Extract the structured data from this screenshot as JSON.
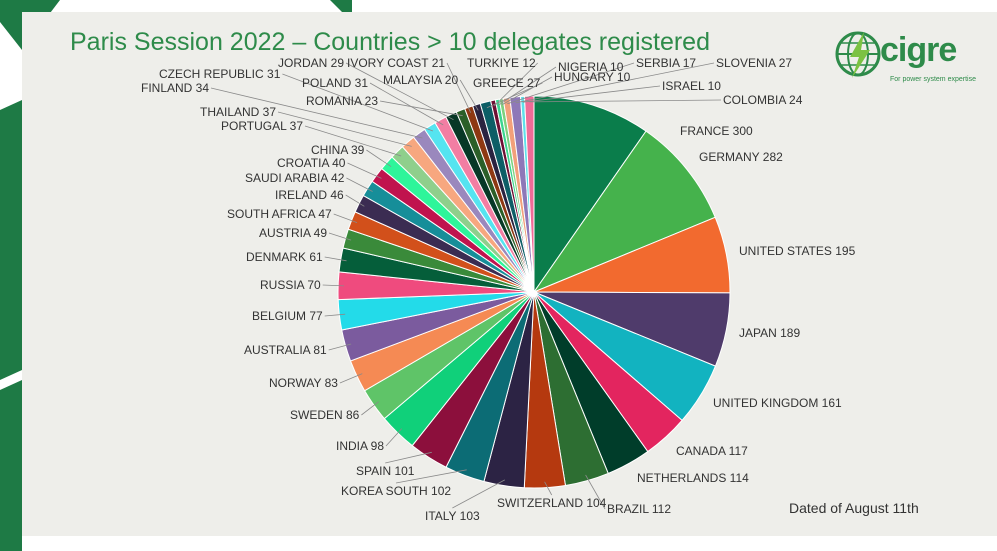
{
  "title": "Paris Session 2022 – Countries > 10 delegates registered",
  "logo": {
    "word": "cigre",
    "tagline": "For power system expertise",
    "icon": "globe-bolt-icon"
  },
  "note": "Dated of August 11th",
  "colors": {
    "brand": "#2e8b4a",
    "panel": "#eeeeea",
    "decor": "#1e7a45"
  },
  "chart_data": {
    "type": "pie",
    "start": "12 o'clock",
    "direction": "clockwise",
    "slices": [
      {
        "label": "FRANCE",
        "value": 300,
        "color": "#0a7d4b"
      },
      {
        "label": "GERMANY",
        "value": 282,
        "color": "#45b24c"
      },
      {
        "label": "UNITED STATES",
        "value": 195,
        "color": "#f26a2f"
      },
      {
        "label": "JAPAN",
        "value": 189,
        "color": "#4f3b6b"
      },
      {
        "label": "UNITED KINGDOM",
        "value": 161,
        "color": "#12b3c0"
      },
      {
        "label": "CANADA",
        "value": 117,
        "color": "#e3255f"
      },
      {
        "label": "NETHERLANDS",
        "value": 114,
        "color": "#003d2a"
      },
      {
        "label": "BRAZIL",
        "value": 112,
        "color": "#2d6e32"
      },
      {
        "label": "SWITZERLAND",
        "value": 104,
        "color": "#b5390f"
      },
      {
        "label": "ITALY",
        "value": 103,
        "color": "#2c2344"
      },
      {
        "label": "KOREA SOUTH",
        "value": 102,
        "color": "#0c6c75"
      },
      {
        "label": "SPAIN",
        "value": 101,
        "color": "#8c0f3c"
      },
      {
        "label": "INDIA",
        "value": 98,
        "color": "#10d07a"
      },
      {
        "label": "SWEDEN",
        "value": 86,
        "color": "#5fc468"
      },
      {
        "label": "NORWAY",
        "value": 83,
        "color": "#f58a54"
      },
      {
        "label": "AUSTRALIA",
        "value": 81,
        "color": "#7b5b9e"
      },
      {
        "label": "BELGIUM",
        "value": 77,
        "color": "#23dbe9"
      },
      {
        "label": "RUSSIA",
        "value": 70,
        "color": "#ef4b7e"
      },
      {
        "label": "DENMARK",
        "value": 61,
        "color": "#055e3a"
      },
      {
        "label": "AUSTRIA",
        "value": 49,
        "color": "#3a8a3a"
      },
      {
        "label": "SOUTH AFRICA",
        "value": 47,
        "color": "#d2501b"
      },
      {
        "label": "IRELAND",
        "value": 46,
        "color": "#3b2c52"
      },
      {
        "label": "SAUDI ARABIA",
        "value": 42,
        "color": "#168e99"
      },
      {
        "label": "CROATIA",
        "value": 40,
        "color": "#c0134e"
      },
      {
        "label": "CHINA",
        "value": 39,
        "color": "#2ef59a"
      },
      {
        "label": "PORTUGAL",
        "value": 37,
        "color": "#8fcf8c"
      },
      {
        "label": "THAILAND",
        "value": 37,
        "color": "#f7a77f"
      },
      {
        "label": "FINLAND",
        "value": 34,
        "color": "#9a88bd"
      },
      {
        "label": "CZECH REPUBLIC",
        "value": 31,
        "color": "#55e4f0"
      },
      {
        "label": "POLAND",
        "value": 31,
        "color": "#f27ea3"
      },
      {
        "label": "JORDAN",
        "value": 29,
        "color": "#073826"
      },
      {
        "label": "ROMANIA",
        "value": 23,
        "color": "#2b5f28"
      },
      {
        "label": "IVORY COAST",
        "value": 21,
        "color": "#8e3812"
      },
      {
        "label": "MALAYSIA",
        "value": 20,
        "color": "#2a2340"
      },
      {
        "label": "GREECE",
        "value": 27,
        "color": "#0d5e66"
      },
      {
        "label": "TURKIYE",
        "value": 12,
        "color": "#6e0f33"
      },
      {
        "label": "NIGERIA",
        "value": 10,
        "color": "#3bd58f"
      },
      {
        "label": "HUNGARY",
        "value": 10,
        "color": "#7ed17f"
      },
      {
        "label": "SERBIA",
        "value": 17,
        "color": "#f2a07a"
      },
      {
        "label": "SLOVENIA",
        "value": 27,
        "color": "#8e78b8"
      },
      {
        "label": "ISRAEL",
        "value": 10,
        "color": "#5ee0ea"
      },
      {
        "label": "COLOMBIA",
        "value": 24,
        "color": "#f06b97"
      }
    ]
  }
}
